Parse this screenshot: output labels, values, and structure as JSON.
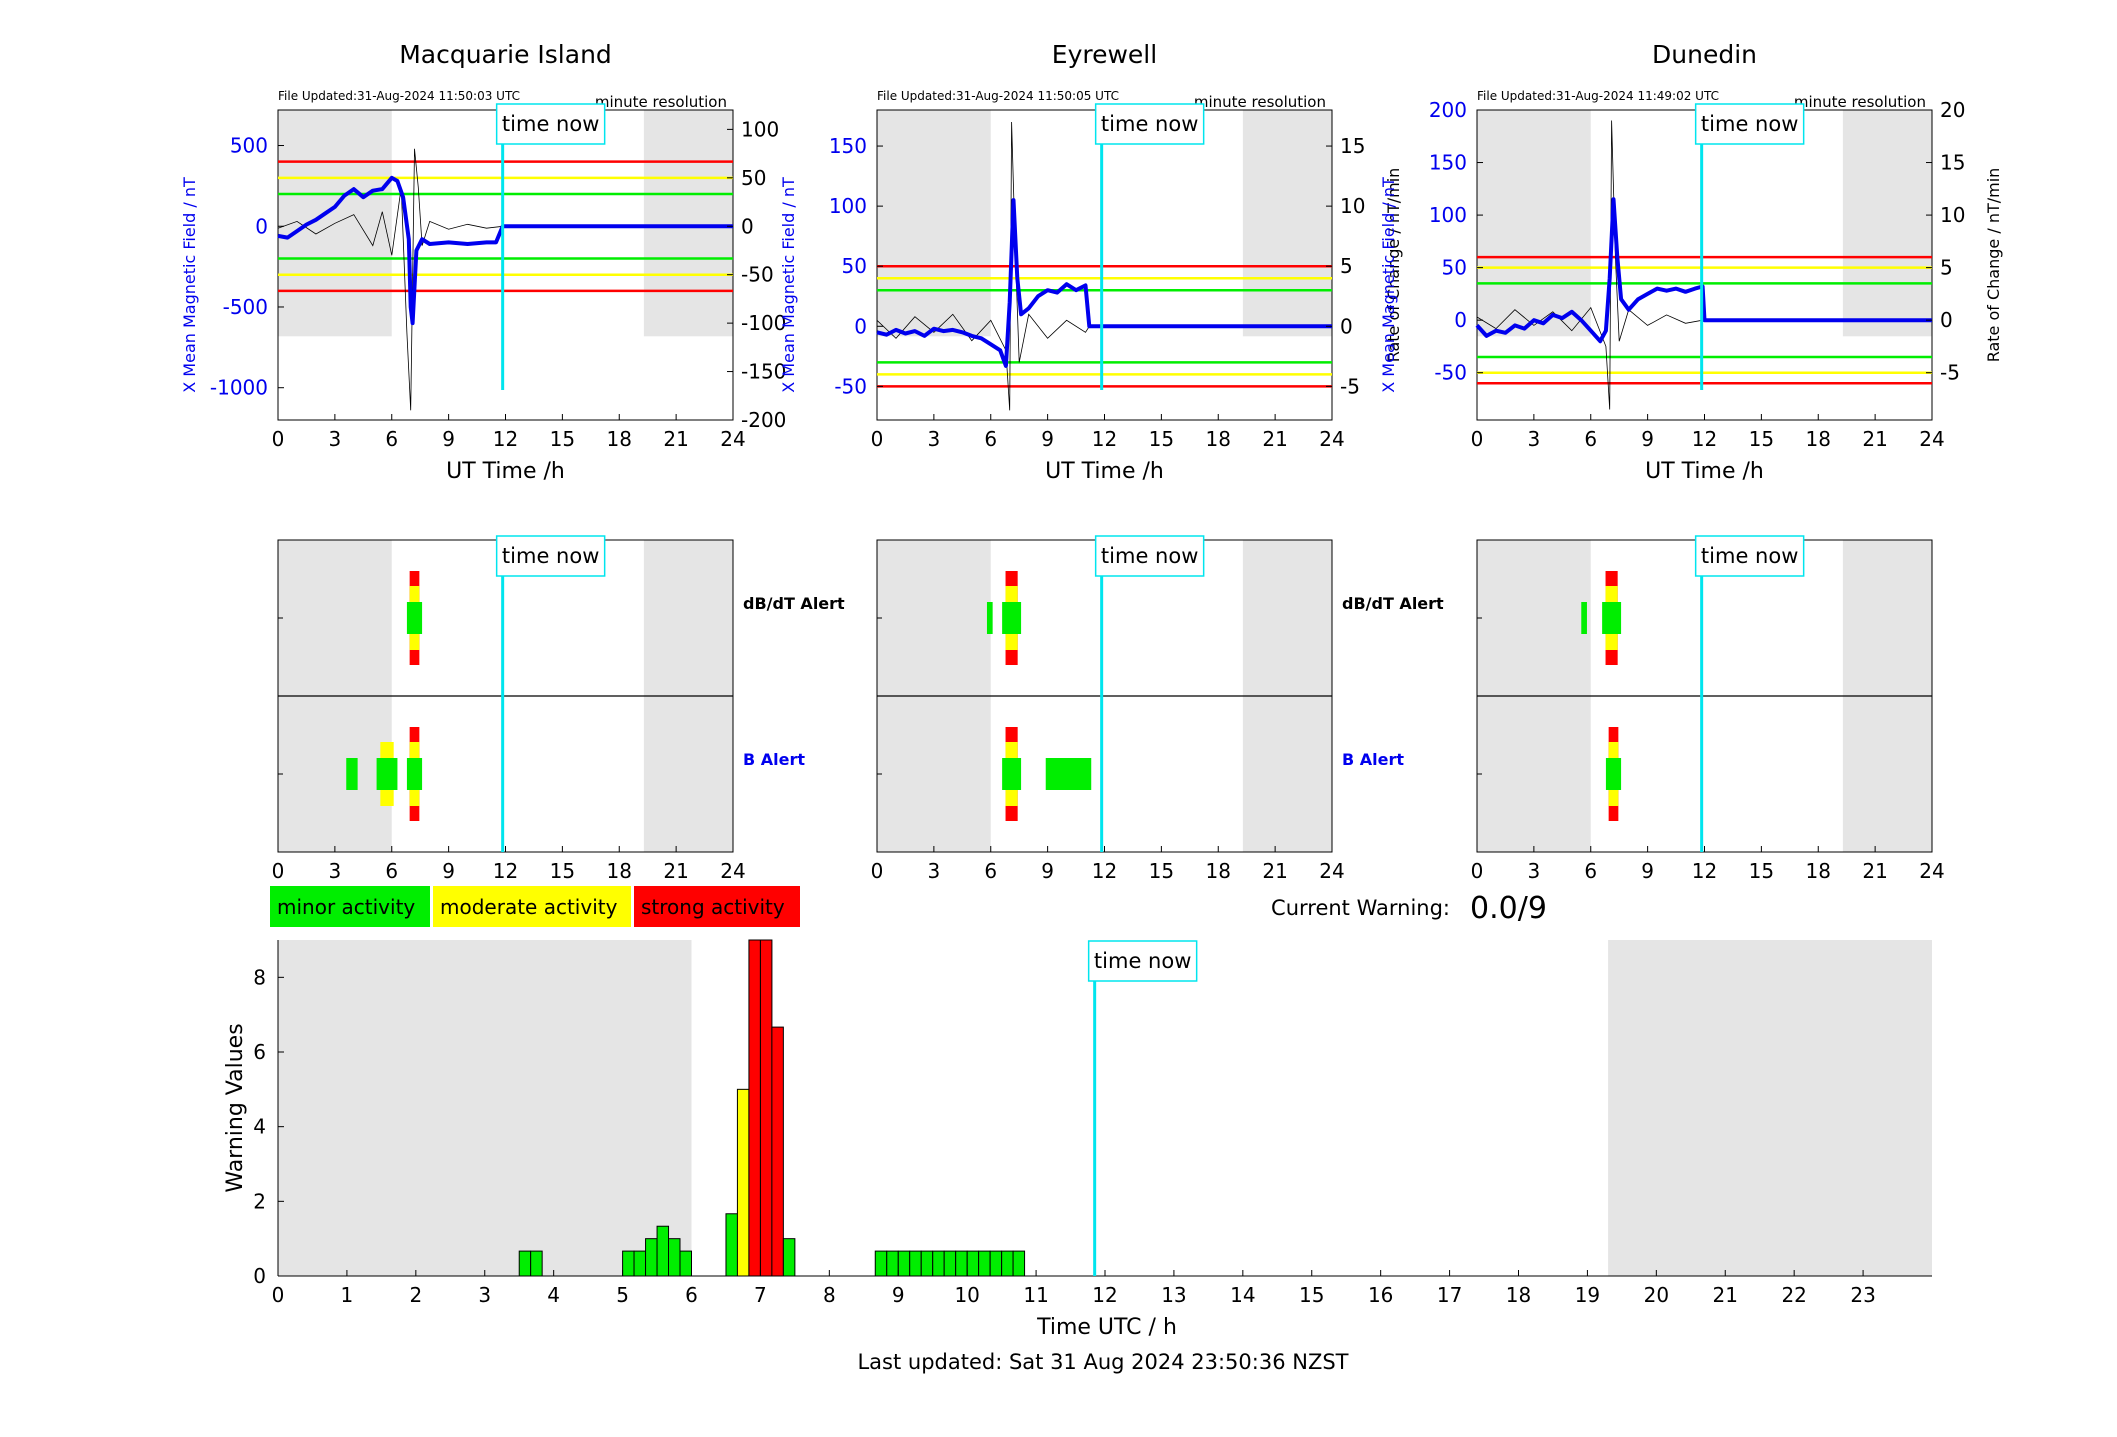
{
  "colors": {
    "green": "#00ee00",
    "yellow": "#ffff00",
    "red": "#ff0000",
    "cyan": "#00e5ee",
    "blue": "#0000ee",
    "gray_band": "#e5e5e5"
  },
  "time_now_label": "time now",
  "resolution_label": "minute resolution",
  "time_now_hour": 11.85,
  "night_bands_hours": [
    [
      0,
      6
    ],
    [
      19.3,
      24
    ]
  ],
  "stations": [
    {
      "name": "Macquarie Island",
      "file_updated": "File Updated:31-Aug-2024 11:50:03 UTC",
      "ylabel_left": "X Mean Magnetic Field / nT",
      "ylabel_right": "",
      "ylim_left": [
        -1200,
        720
      ],
      "yticks_left": [
        500,
        0,
        -500,
        -1000
      ],
      "ylim_right": [
        -200,
        120
      ],
      "yticks_right": [
        100,
        50,
        0,
        -50,
        -100,
        -150,
        -200
      ],
      "thresholds": {
        "red": 400,
        "yellow": 300,
        "green": 200
      }
    },
    {
      "name": "Eyrewell",
      "file_updated": "File Updated:31-Aug-2024 11:50:05 UTC",
      "ylabel_left": "X Mean Magnetic Field / nT",
      "ylabel_right": "Rate of Change / nT/min",
      "ylim_left": [
        -78,
        180
      ],
      "yticks_left": [
        150,
        100,
        50,
        0,
        -50
      ],
      "ylim_right": [
        -7.8,
        18
      ],
      "yticks_right": [
        15,
        10,
        5,
        0,
        -5
      ],
      "thresholds": {
        "red": 50,
        "yellow": 40,
        "green": 30
      }
    },
    {
      "name": "Dunedin",
      "file_updated": "File Updated:31-Aug-2024 11:49:02 UTC",
      "ylabel_left": "X Mean Magnetic Field / nT",
      "ylabel_right": "Rate of Change / nT/min",
      "ylim_left": [
        -95,
        200
      ],
      "yticks_left": [
        200,
        150,
        100,
        50,
        0,
        -50
      ],
      "ylim_right": [
        -9.5,
        20
      ],
      "yticks_right": [
        20,
        15,
        10,
        5,
        0,
        -5
      ],
      "thresholds": {
        "red": 60,
        "yellow": 50,
        "green": 35
      }
    }
  ],
  "time_axis": {
    "xlabel": "UT Time /h",
    "xlim": [
      0,
      24
    ],
    "xticks": [
      0,
      3,
      6,
      9,
      12,
      15,
      18,
      21,
      24
    ]
  },
  "alerts": {
    "dbdt_label": "dB/dT Alert",
    "b_label": "B Alert",
    "xticks": [
      0,
      3,
      6,
      9,
      12,
      15,
      18,
      21,
      24
    ]
  },
  "legend": [
    {
      "label": "minor activity",
      "color": "#00ee00"
    },
    {
      "label": "moderate activity",
      "color": "#ffff00"
    },
    {
      "label": "strong activity",
      "color": "#ff0000"
    }
  ],
  "current_warning": {
    "label": "Current Warning:",
    "value": "0.0/9"
  },
  "chart_data": [
    {
      "type": "line",
      "title": "Macquarie Island",
      "xlabel": "UT Time /h",
      "ylabel": "X Mean Magnetic Field / nT",
      "xlim": [
        0,
        24
      ],
      "series": [
        {
          "color": "#0000ee",
          "x": [
            0,
            0.5,
            1,
            1.5,
            2,
            2.5,
            3,
            3.5,
            4,
            4.5,
            5,
            5.5,
            6,
            6.3,
            6.6,
            6.9,
            7.0,
            7.1,
            7.3,
            7.6,
            8,
            9,
            10,
            11,
            11.5,
            11.85,
            12,
            24
          ],
          "y": [
            -60,
            -70,
            -30,
            10,
            40,
            80,
            120,
            190,
            230,
            180,
            220,
            230,
            300,
            280,
            180,
            -80,
            -500,
            -600,
            -150,
            -80,
            -110,
            -100,
            -110,
            -100,
            -100,
            0,
            0,
            0
          ]
        },
        {
          "color": "#000000",
          "x": [
            0,
            1,
            2,
            3,
            4,
            5,
            5.5,
            6,
            6.5,
            6.8,
            7.0,
            7.2,
            7.4,
            7.6,
            8,
            9,
            10,
            11,
            11.85
          ],
          "y": [
            -2,
            5,
            -8,
            3,
            12,
            -20,
            15,
            -30,
            40,
            -110,
            -190,
            80,
            40,
            -20,
            5,
            -3,
            2,
            -2,
            0
          ]
        }
      ]
    },
    {
      "type": "line",
      "title": "Eyrewell",
      "xlabel": "UT Time /h",
      "ylabel": "X Mean Magnetic Field / nT",
      "xlim": [
        0,
        24
      ],
      "series": [
        {
          "color": "#0000ee",
          "x": [
            0,
            0.5,
            1,
            1.5,
            2,
            2.5,
            3,
            3.5,
            4,
            4.5,
            5,
            5.5,
            6,
            6.5,
            6.8,
            7.0,
            7.2,
            7.4,
            7.6,
            8,
            8.5,
            9,
            9.5,
            10,
            10.5,
            11,
            11.2,
            12,
            24
          ],
          "y": [
            -5,
            -7,
            -3,
            -6,
            -4,
            -8,
            -2,
            -4,
            -3,
            -5,
            -8,
            -10,
            -15,
            -20,
            -33,
            20,
            105,
            40,
            10,
            15,
            25,
            30,
            28,
            35,
            30,
            34,
            0,
            0,
            0
          ]
        },
        {
          "color": "#000000",
          "x": [
            0,
            1,
            2,
            3,
            4,
            5,
            6,
            6.8,
            7.0,
            7.1,
            7.3,
            7.5,
            8,
            9,
            10,
            11,
            11.2
          ],
          "y": [
            0.5,
            -1,
            0.8,
            -0.5,
            1,
            -1.2,
            0.5,
            -2,
            -7,
            17,
            6,
            -3,
            1,
            -1,
            0.5,
            -0.5,
            0
          ]
        }
      ]
    },
    {
      "type": "line",
      "title": "Dunedin",
      "xlabel": "UT Time /h",
      "ylabel": "X Mean Magnetic Field / nT",
      "xlim": [
        0,
        24
      ],
      "series": [
        {
          "color": "#0000ee",
          "x": [
            0,
            0.5,
            1,
            1.5,
            2,
            2.5,
            3,
            3.5,
            4,
            4.5,
            5,
            5.5,
            6,
            6.5,
            6.8,
            7.0,
            7.2,
            7.4,
            7.6,
            8,
            8.5,
            9,
            9.5,
            10,
            10.5,
            11,
            11.5,
            11.9,
            12,
            24
          ],
          "y": [
            -5,
            -15,
            -10,
            -12,
            -5,
            -8,
            0,
            -3,
            5,
            2,
            8,
            0,
            -10,
            -20,
            -10,
            40,
            115,
            60,
            20,
            10,
            20,
            25,
            30,
            28,
            30,
            27,
            30,
            32,
            0,
            0
          ]
        },
        {
          "color": "#000000",
          "x": [
            0,
            1,
            2,
            3,
            4,
            5,
            6,
            6.8,
            7.0,
            7.1,
            7.3,
            7.5,
            8,
            9,
            10,
            11,
            11.9
          ],
          "y": [
            0.3,
            -0.8,
            1,
            -0.5,
            0.8,
            -1,
            1.2,
            -2.5,
            -8.5,
            19,
            6,
            -2,
            1,
            -0.5,
            0.5,
            -0.3,
            0
          ]
        }
      ]
    },
    {
      "type": "bar",
      "xlabel": "Time UTC / h",
      "ylabel": "Warning Values",
      "xlim": [
        0,
        24
      ],
      "ylim": [
        0,
        9
      ],
      "xticks": [
        0,
        1,
        2,
        3,
        4,
        5,
        6,
        7,
        8,
        9,
        10,
        11,
        12,
        13,
        14,
        15,
        16,
        17,
        18,
        19,
        20,
        21,
        22,
        23
      ],
      "yticks": [
        0,
        2,
        4,
        6,
        8
      ],
      "bar_width_hours": 0.1667,
      "bars": [
        {
          "t": 3.667,
          "value": 0.667,
          "level": "green"
        },
        {
          "t": 3.833,
          "value": 0.667,
          "level": "green"
        },
        {
          "t": 5.167,
          "value": 0.667,
          "level": "green"
        },
        {
          "t": 5.333,
          "value": 0.667,
          "level": "green"
        },
        {
          "t": 5.5,
          "value": 1.0,
          "level": "green"
        },
        {
          "t": 5.667,
          "value": 1.333,
          "level": "green"
        },
        {
          "t": 5.833,
          "value": 1.0,
          "level": "green"
        },
        {
          "t": 6.0,
          "value": 0.667,
          "level": "green"
        },
        {
          "t": 6.667,
          "value": 1.667,
          "level": "green"
        },
        {
          "t": 6.833,
          "value": 5.0,
          "level": "yellow"
        },
        {
          "t": 7.0,
          "value": 9.0,
          "level": "red"
        },
        {
          "t": 7.167,
          "value": 9.0,
          "level": "red"
        },
        {
          "t": 7.333,
          "value": 6.667,
          "level": "red"
        },
        {
          "t": 7.5,
          "value": 1.0,
          "level": "green"
        },
        {
          "t": 8.833,
          "value": 0.667,
          "level": "green"
        },
        {
          "t": 9.0,
          "value": 0.667,
          "level": "green"
        },
        {
          "t": 9.167,
          "value": 0.667,
          "level": "green"
        },
        {
          "t": 9.333,
          "value": 0.667,
          "level": "green"
        },
        {
          "t": 9.5,
          "value": 0.667,
          "level": "green"
        },
        {
          "t": 9.667,
          "value": 0.667,
          "level": "green"
        },
        {
          "t": 9.833,
          "value": 0.667,
          "level": "green"
        },
        {
          "t": 10.0,
          "value": 0.667,
          "level": "green"
        },
        {
          "t": 10.167,
          "value": 0.667,
          "level": "green"
        },
        {
          "t": 10.333,
          "value": 0.667,
          "level": "green"
        },
        {
          "t": 10.5,
          "value": 0.667,
          "level": "green"
        },
        {
          "t": 10.667,
          "value": 0.667,
          "level": "green"
        },
        {
          "t": 10.833,
          "value": 0.667,
          "level": "green"
        }
      ]
    }
  ],
  "alert_blocks": [
    {
      "dbdt": [
        {
          "t0": 6.8,
          "t1": 7.6,
          "levels": "gyr"
        }
      ],
      "b": [
        {
          "t0": 3.6,
          "t1": 4.2,
          "levels": "g"
        },
        {
          "t0": 5.2,
          "t1": 6.3,
          "levels": "gy"
        },
        {
          "t0": 6.8,
          "t1": 7.6,
          "levels": "gyr"
        }
      ]
    },
    {
      "dbdt": [
        {
          "t0": 5.8,
          "t1": 6.1,
          "levels": "g"
        },
        {
          "t0": 6.6,
          "t1": 7.6,
          "levels": "gyr"
        }
      ],
      "b": [
        {
          "t0": 6.6,
          "t1": 7.6,
          "levels": "gyr"
        },
        {
          "t0": 8.9,
          "t1": 11.3,
          "levels": "g"
        }
      ]
    },
    {
      "dbdt": [
        {
          "t0": 5.5,
          "t1": 5.8,
          "levels": "g"
        },
        {
          "t0": 6.6,
          "t1": 7.6,
          "levels": "gyr"
        }
      ],
      "b": [
        {
          "t0": 6.8,
          "t1": 7.6,
          "levels": "gyr"
        }
      ]
    }
  ],
  "last_updated": "Last updated: Sat 31 Aug 2024 23:50:36 NZST"
}
